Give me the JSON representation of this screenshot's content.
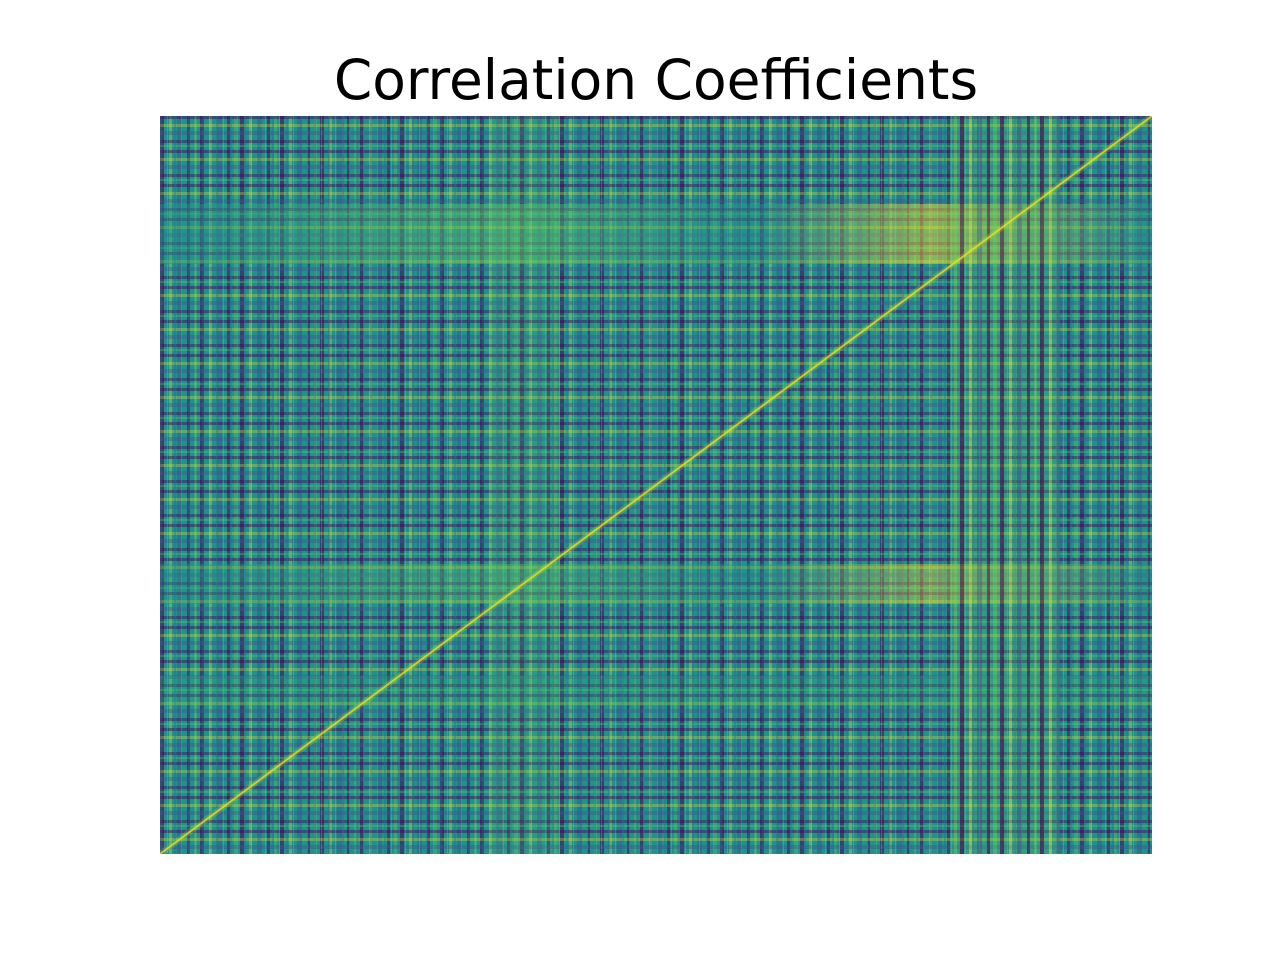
{
  "chart_data": {
    "type": "heatmap",
    "title": "Correlation Coefficients",
    "xlabel": "",
    "ylabel": "",
    "colormap": "viridis",
    "colors": {
      "low": "#440154",
      "mid": "#21918c",
      "high": "#fde725"
    },
    "value_range": [
      -1,
      1
    ],
    "grid": false,
    "legend": "none",
    "axes_visible": false,
    "diagonal": "bottom-left to top-right"
  }
}
